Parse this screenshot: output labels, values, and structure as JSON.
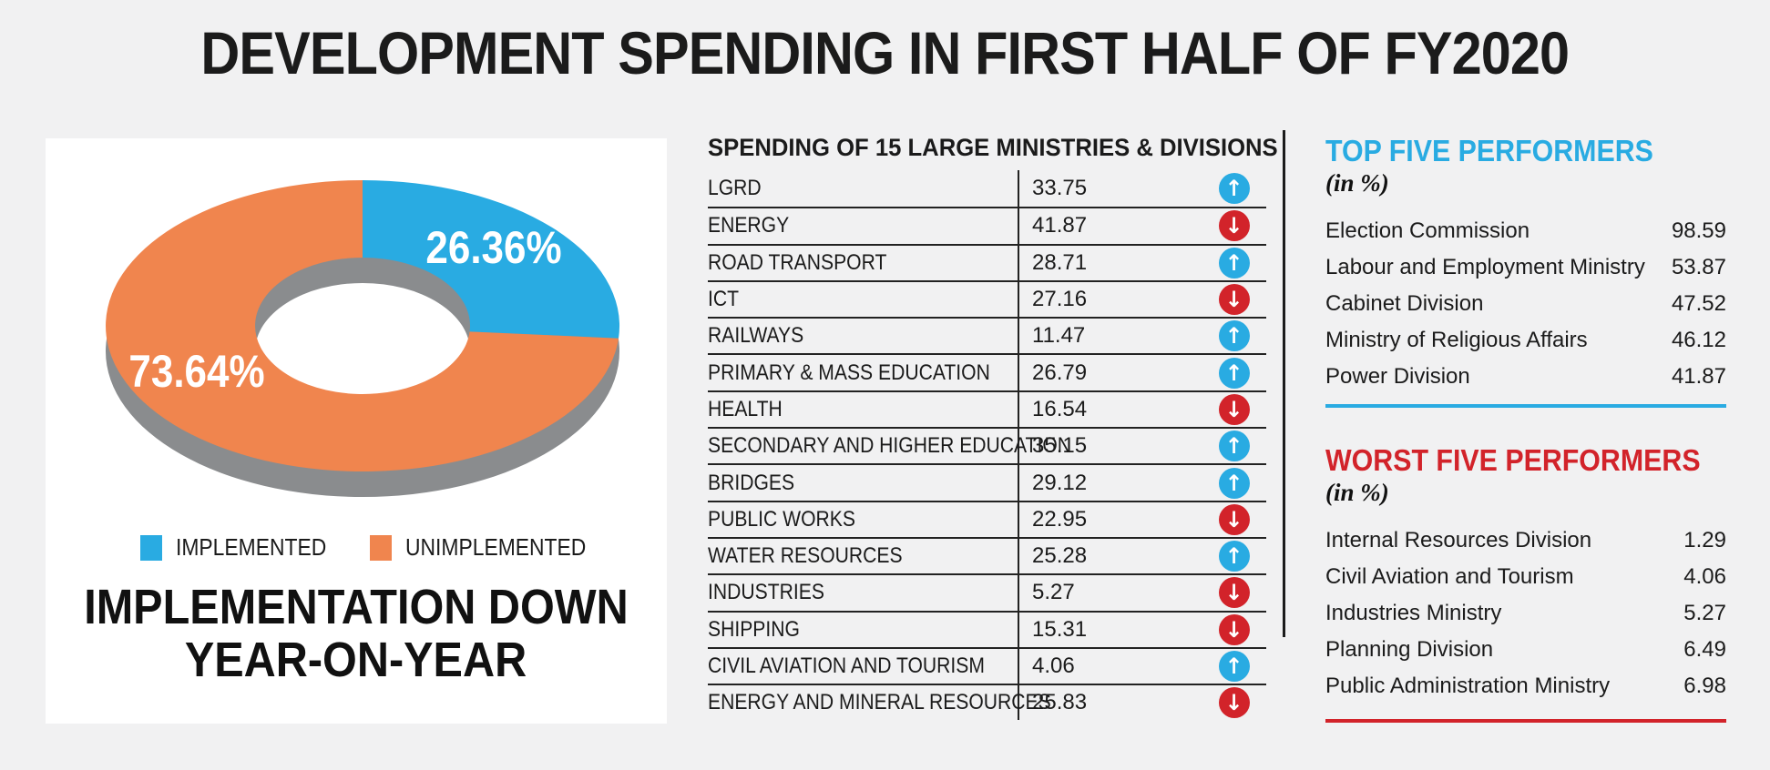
{
  "title": "DEVELOPMENT SPENDING IN FIRST HALF OF FY2020",
  "palette": {
    "background": "#F1F1F2",
    "panel": "#FFFFFF",
    "text": "#1B1B1B",
    "blue": "#29ABE2",
    "orange": "#F0854E",
    "gray_3d": "#8A8C8E",
    "red": "#D2232A",
    "trend_up": "#29ABE2",
    "trend_down": "#D2232A"
  },
  "donut_caption": {
    "line1": "IMPLEMENTATION DOWN",
    "line2": "YEAR-ON-YEAR"
  },
  "chart_data": [
    {
      "id": "implementation_donut",
      "type": "pie",
      "style": "3d-donut",
      "title": "IMPLEMENTATION DOWN YEAR-ON-YEAR",
      "labels": [
        "IMPLEMENTED",
        "UNIMPLEMENTED"
      ],
      "values": [
        26.36,
        73.64
      ],
      "data_labels": [
        "26.36%",
        "73.64%"
      ],
      "colors": [
        "#29ABE2",
        "#F0854E"
      ],
      "legend_position": "bottom"
    },
    {
      "id": "ministries_spending",
      "type": "table",
      "title": "SPENDING OF 15 LARGE MINISTRIES & DIVISIONS",
      "rows": [
        {
          "name": "LGRD",
          "value": "33.75",
          "trend": "up"
        },
        {
          "name": "ENERGY",
          "value": "41.87",
          "trend": "down"
        },
        {
          "name": "ROAD TRANSPORT",
          "value": "28.71",
          "trend": "up"
        },
        {
          "name": "ICT",
          "value": "27.16",
          "trend": "down"
        },
        {
          "name": "RAILWAYS",
          "value": "11.47",
          "trend": "up"
        },
        {
          "name": "PRIMARY & MASS EDUCATION",
          "value": "26.79",
          "trend": "up"
        },
        {
          "name": "HEALTH",
          "value": "16.54",
          "trend": "down"
        },
        {
          "name": "SECONDARY AND HIGHER EDUCATION",
          "value": "35.15",
          "trend": "up"
        },
        {
          "name": "BRIDGES",
          "value": "29.12",
          "trend": "up"
        },
        {
          "name": "PUBLIC WORKS",
          "value": "22.95",
          "trend": "down"
        },
        {
          "name": "WATER RESOURCES",
          "value": "25.28",
          "trend": "up"
        },
        {
          "name": "INDUSTRIES",
          "value": "5.27",
          "trend": "down"
        },
        {
          "name": "SHIPPING",
          "value": "15.31",
          "trend": "down"
        },
        {
          "name": "CIVIL AVIATION AND TOURISM",
          "value": "4.06",
          "trend": "up"
        },
        {
          "name": "ENERGY AND MINERAL RESOURCES",
          "value": "25.83",
          "trend": "down"
        }
      ]
    },
    {
      "id": "top_five_performers",
      "type": "table",
      "title": "TOP FIVE PERFORMERS",
      "subtitle": "(in %)",
      "accent": "#29ABE2",
      "rows": [
        {
          "name": "Election Commission",
          "value": "98.59"
        },
        {
          "name": "Labour and Employment Ministry",
          "value": "53.87"
        },
        {
          "name": "Cabinet Division",
          "value": "47.52"
        },
        {
          "name": "Ministry of Religious Affairs",
          "value": "46.12"
        },
        {
          "name": "Power Division",
          "value": "41.87"
        }
      ]
    },
    {
      "id": "worst_five_performers",
      "type": "table",
      "title": "WORST FIVE PERFORMERS",
      "subtitle": "(in %)",
      "accent": "#D2232A",
      "rows": [
        {
          "name": "Internal Resources Division",
          "value": "1.29"
        },
        {
          "name": "Civil Aviation and Tourism",
          "value": "4.06"
        },
        {
          "name": "Industries Ministry",
          "value": "5.27"
        },
        {
          "name": "Planning Division",
          "value": "6.49"
        },
        {
          "name": "Public Administration Ministry",
          "value": "6.98"
        }
      ]
    }
  ]
}
